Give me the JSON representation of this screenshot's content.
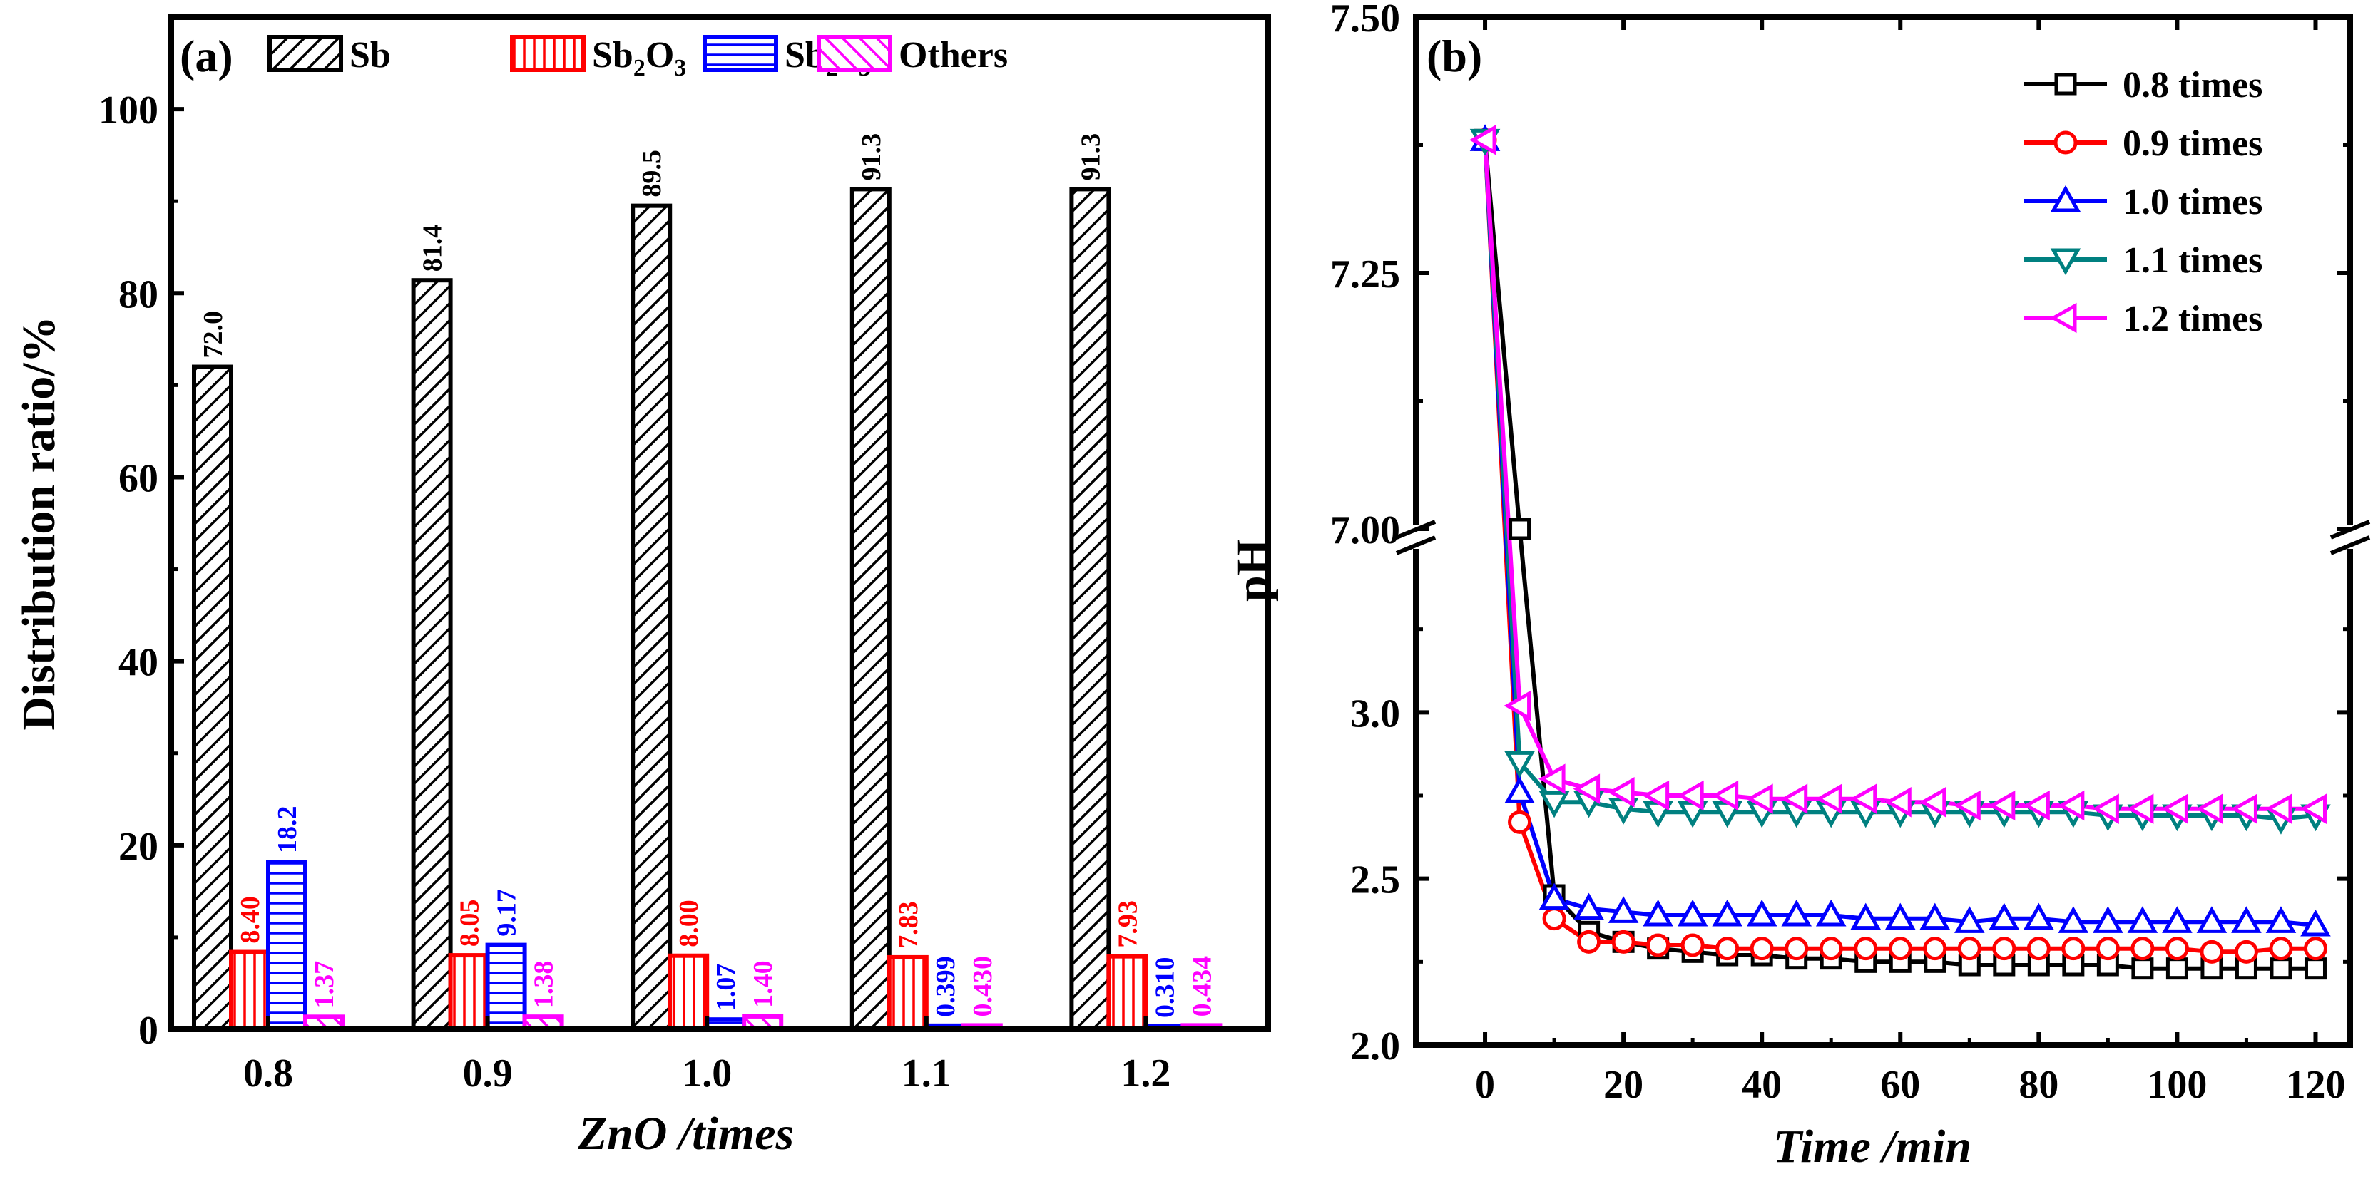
{
  "colors": {
    "black": "#000000",
    "red": "#ff0000",
    "blue": "#0000ff",
    "teal": "#008080",
    "magenta": "#ff00ff"
  },
  "chart_data": [
    {
      "type": "bar",
      "panel_label": "(a)",
      "title": "",
      "xlabel": "ZnO /times",
      "ylabel": "Distribution ratio/%",
      "categories": [
        "0.8",
        "0.9",
        "1.0",
        "1.1",
        "1.2"
      ],
      "ylim": [
        0,
        110
      ],
      "yticks": [
        0,
        20,
        40,
        60,
        80,
        100
      ],
      "grid": false,
      "legend_position": "top",
      "legend": [
        {
          "text": "Sb",
          "sub": []
        },
        {
          "text": "Sb2O3",
          "sub": [
            "Sb",
            "2",
            "O",
            "3"
          ]
        },
        {
          "text": "Sb2S3",
          "sub": [
            "Sb",
            "2",
            "S",
            "3"
          ]
        },
        {
          "text": "Others",
          "sub": []
        }
      ],
      "series": [
        {
          "name": "Sb",
          "color": "#000000",
          "pattern": "diagonal",
          "values": [
            72.0,
            81.4,
            89.5,
            91.3,
            91.3
          ],
          "labels": [
            "72.0",
            "81.4",
            "89.5",
            "91.3",
            "91.3"
          ]
        },
        {
          "name": "Sb2O3",
          "color": "#ff0000",
          "pattern": "vertical",
          "values": [
            8.4,
            8.05,
            8.0,
            7.83,
            7.93
          ],
          "labels": [
            "8.40",
            "8.05",
            "8.00",
            "7.83",
            "7.93"
          ]
        },
        {
          "name": "Sb2S3",
          "color": "#0000ff",
          "pattern": "horizontal",
          "values": [
            18.2,
            9.17,
            1.07,
            0.399,
            0.31
          ],
          "labels": [
            "18.2",
            "9.17",
            "1.07",
            "0.399",
            "0.310"
          ]
        },
        {
          "name": "Others",
          "color": "#ff00ff",
          "pattern": "backdiagonal",
          "values": [
            1.37,
            1.38,
            1.4,
            0.43,
            0.434
          ],
          "labels": [
            "1.37",
            "1.38",
            "1.40",
            "0.430",
            "0.434"
          ]
        }
      ]
    },
    {
      "type": "line",
      "panel_label": "(b)",
      "title": "",
      "xlabel": "Time /min",
      "ylabel": "pH",
      "xlim": [
        -10,
        125
      ],
      "xticks": [
        0,
        20,
        40,
        60,
        80,
        100,
        120
      ],
      "broken_y_axis": true,
      "y_segments": [
        {
          "range": [
            2.0,
            3.5
          ],
          "ticks": [
            "2.0",
            "2.5",
            "3.0"
          ]
        },
        {
          "range": [
            7.0,
            7.5
          ],
          "ticks": [
            "7.00",
            "7.25",
            "7.50"
          ]
        }
      ],
      "grid": false,
      "legend_position": "top-right",
      "x": [
        0,
        5,
        10,
        15,
        20,
        25,
        30,
        35,
        40,
        45,
        50,
        55,
        60,
        65,
        70,
        75,
        80,
        85,
        90,
        95,
        100,
        105,
        110,
        115,
        120
      ],
      "series": [
        {
          "name": "0.8 times",
          "color": "#000000",
          "marker": "square",
          "values": [
            7.38,
            7.0,
            2.45,
            2.34,
            2.31,
            2.29,
            2.28,
            2.27,
            2.27,
            2.26,
            2.26,
            2.25,
            2.25,
            2.25,
            2.24,
            2.24,
            2.24,
            2.24,
            2.24,
            2.23,
            2.23,
            2.23,
            2.23,
            2.23,
            2.23
          ]
        },
        {
          "name": "0.9 times",
          "color": "#ff0000",
          "marker": "circle",
          "values": [
            7.38,
            2.67,
            2.38,
            2.31,
            2.31,
            2.3,
            2.3,
            2.29,
            2.29,
            2.29,
            2.29,
            2.29,
            2.29,
            2.29,
            2.29,
            2.29,
            2.29,
            2.29,
            2.29,
            2.29,
            2.29,
            2.28,
            2.28,
            2.29,
            2.29
          ]
        },
        {
          "name": "1.0 times",
          "color": "#0000ff",
          "marker": "triangle-up",
          "values": [
            7.38,
            2.76,
            2.44,
            2.41,
            2.4,
            2.39,
            2.39,
            2.39,
            2.39,
            2.39,
            2.39,
            2.38,
            2.38,
            2.38,
            2.37,
            2.38,
            2.38,
            2.37,
            2.37,
            2.37,
            2.37,
            2.37,
            2.37,
            2.37,
            2.36
          ]
        },
        {
          "name": "1.1 times",
          "color": "#008080",
          "marker": "triangle-down",
          "values": [
            7.38,
            2.85,
            2.73,
            2.73,
            2.71,
            2.7,
            2.7,
            2.7,
            2.7,
            2.7,
            2.7,
            2.7,
            2.7,
            2.7,
            2.7,
            2.7,
            2.7,
            2.7,
            2.69,
            2.69,
            2.69,
            2.69,
            2.69,
            2.68,
            2.69
          ]
        },
        {
          "name": "1.2 times",
          "color": "#ff00ff",
          "marker": "triangle-left",
          "values": [
            7.38,
            3.02,
            2.8,
            2.77,
            2.76,
            2.75,
            2.75,
            2.75,
            2.74,
            2.74,
            2.74,
            2.74,
            2.73,
            2.73,
            2.72,
            2.72,
            2.72,
            2.72,
            2.71,
            2.71,
            2.71,
            2.71,
            2.71,
            2.71,
            2.71
          ]
        }
      ]
    }
  ]
}
